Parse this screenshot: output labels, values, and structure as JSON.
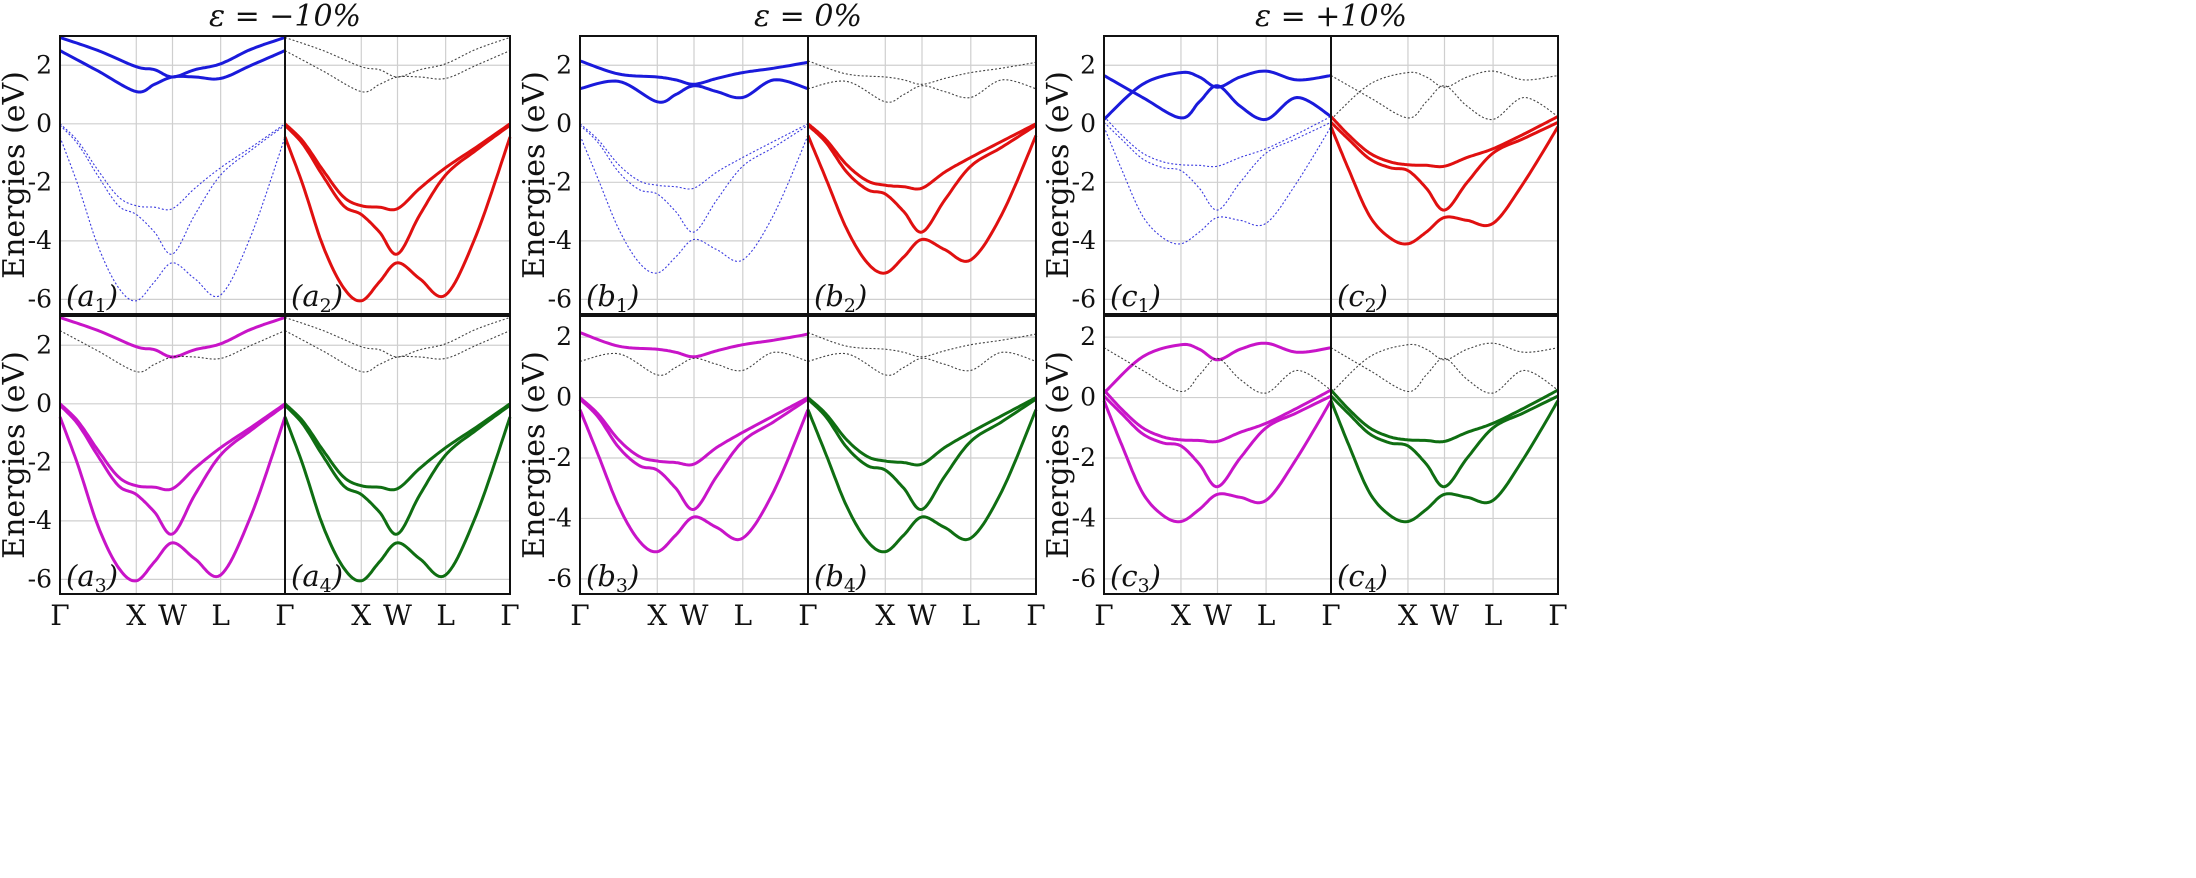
{
  "figure": {
    "ylabel": "Energies (eV)",
    "y_ticks": [
      "2",
      "0",
      "-2",
      "-4",
      "-6"
    ],
    "x_ticks": [
      "Γ",
      "X",
      "W",
      "L",
      "Γ"
    ],
    "colors": {
      "a": "#1a1adb",
      "b": "#e01010",
      "c": "#c814c8",
      "d": "#0f6e12",
      "ghost": "#222222"
    }
  },
  "chart_data": [
    {
      "type": "line",
      "title": "ε = −10%",
      "strain_percent": -10,
      "ylabel": "Energies (eV)",
      "ylim_top_row": [
        -6.5,
        3.0
      ],
      "ylim_bottom_row": [
        -6.5,
        3.0
      ],
      "x_ticks": [
        "Γ",
        "X",
        "W",
        "L",
        "Γ"
      ],
      "k_path_positions": [
        0,
        0.339,
        0.5,
        0.714,
        1
      ],
      "panels": [
        "(a1)",
        "(a2)",
        "(a3)",
        "(a4)"
      ],
      "series": [
        {
          "name": "conduction band 1",
          "x": [
            0,
            0.17,
            0.339,
            0.42,
            0.5,
            0.6,
            0.714,
            0.85,
            1
          ],
          "values": [
            2.95,
            2.5,
            1.95,
            1.85,
            1.6,
            1.85,
            2.05,
            2.55,
            2.95
          ]
        },
        {
          "name": "conduction band 2",
          "x": [
            0,
            0.17,
            0.339,
            0.42,
            0.5,
            0.6,
            0.714,
            0.85,
            1
          ],
          "values": [
            2.5,
            1.8,
            1.1,
            1.35,
            1.6,
            1.6,
            1.55,
            2.0,
            2.5
          ]
        },
        {
          "name": "valence band 1",
          "x": [
            0,
            0.08,
            0.17,
            0.26,
            0.339,
            0.42,
            0.5,
            0.6,
            0.714,
            0.85,
            1
          ],
          "values": [
            0,
            -0.6,
            -1.6,
            -2.5,
            -2.8,
            -2.85,
            -2.9,
            -2.2,
            -1.5,
            -0.8,
            0
          ]
        },
        {
          "name": "valence band 2",
          "x": [
            0,
            0.08,
            0.17,
            0.26,
            0.339,
            0.42,
            0.5,
            0.6,
            0.714,
            0.85,
            1
          ],
          "values": [
            -0.05,
            -0.7,
            -1.8,
            -2.8,
            -3.1,
            -3.7,
            -4.45,
            -3.1,
            -1.75,
            -0.9,
            -0.05
          ]
        },
        {
          "name": "valence band 3",
          "x": [
            0,
            0.08,
            0.17,
            0.26,
            0.339,
            0.42,
            0.5,
            0.6,
            0.714,
            0.85,
            1
          ],
          "values": [
            -0.45,
            -2.1,
            -4.2,
            -5.6,
            -6.05,
            -5.4,
            -4.75,
            -5.3,
            -5.85,
            -3.8,
            -0.45
          ]
        }
      ]
    },
    {
      "type": "line",
      "title": "ε = 0%",
      "strain_percent": 0,
      "ylabel": "Energies (eV)",
      "ylim_top_row": [
        -6.5,
        3.0
      ],
      "ylim_bottom_row": [
        -6.5,
        2.7
      ],
      "x_ticks": [
        "Γ",
        "X",
        "W",
        "L",
        "Γ"
      ],
      "k_path_positions": [
        0,
        0.339,
        0.5,
        0.714,
        1
      ],
      "panels": [
        "(b1)",
        "(b2)",
        "(b3)",
        "(b4)"
      ],
      "series": [
        {
          "name": "conduction band 1",
          "x": [
            0,
            0.17,
            0.339,
            0.42,
            0.5,
            0.6,
            0.714,
            0.85,
            1
          ],
          "values": [
            2.15,
            1.7,
            1.6,
            1.5,
            1.35,
            1.55,
            1.75,
            1.9,
            2.1
          ]
        },
        {
          "name": "conduction band 2",
          "x": [
            0,
            0.17,
            0.339,
            0.42,
            0.5,
            0.6,
            0.714,
            0.85,
            1
          ],
          "values": [
            1.2,
            1.45,
            0.75,
            1.0,
            1.3,
            1.1,
            0.9,
            1.5,
            1.2
          ]
        },
        {
          "name": "valence band 1",
          "x": [
            0,
            0.08,
            0.17,
            0.26,
            0.339,
            0.42,
            0.5,
            0.6,
            0.714,
            0.85,
            1
          ],
          "values": [
            0,
            -0.55,
            -1.4,
            -1.95,
            -2.1,
            -2.15,
            -2.2,
            -1.65,
            -1.15,
            -0.6,
            0
          ]
        },
        {
          "name": "valence band 2",
          "x": [
            0,
            0.08,
            0.17,
            0.26,
            0.339,
            0.42,
            0.5,
            0.6,
            0.714,
            0.85,
            1
          ],
          "values": [
            -0.05,
            -0.65,
            -1.65,
            -2.25,
            -2.4,
            -3.0,
            -3.7,
            -2.6,
            -1.45,
            -0.8,
            -0.05
          ]
        },
        {
          "name": "valence band 3",
          "x": [
            0,
            0.08,
            0.17,
            0.26,
            0.339,
            0.42,
            0.5,
            0.6,
            0.714,
            0.85,
            1
          ],
          "values": [
            -0.4,
            -1.9,
            -3.6,
            -4.75,
            -5.1,
            -4.55,
            -3.95,
            -4.3,
            -4.65,
            -3.1,
            -0.4
          ]
        }
      ]
    },
    {
      "type": "line",
      "title": "ε = +10%",
      "strain_percent": 10,
      "ylabel": "Energies (eV)",
      "ylim_top_row": [
        -6.5,
        3.0
      ],
      "ylim_bottom_row": [
        -6.5,
        2.7
      ],
      "x_ticks": [
        "Γ",
        "X",
        "W",
        "L",
        "Γ"
      ],
      "k_path_positions": [
        0,
        0.339,
        0.5,
        0.714,
        1
      ],
      "panels": [
        "(c1)",
        "(c2)",
        "(c3)",
        "(c4)"
      ],
      "series": [
        {
          "name": "conduction band 1",
          "x": [
            0,
            0.17,
            0.339,
            0.42,
            0.5,
            0.6,
            0.714,
            0.85,
            1
          ],
          "values": [
            0.15,
            1.35,
            1.75,
            1.6,
            1.25,
            1.6,
            1.8,
            1.5,
            1.65
          ]
        },
        {
          "name": "conduction band 2",
          "x": [
            0,
            0.17,
            0.339,
            0.42,
            0.5,
            0.6,
            0.714,
            0.85,
            1
          ],
          "values": [
            1.65,
            0.9,
            0.2,
            0.75,
            1.3,
            0.6,
            0.15,
            0.9,
            0.25
          ]
        },
        {
          "name": "valence band 1",
          "x": [
            0,
            0.08,
            0.17,
            0.26,
            0.339,
            0.42,
            0.5,
            0.6,
            0.714,
            0.85,
            1
          ],
          "values": [
            0.25,
            -0.4,
            -1.0,
            -1.3,
            -1.4,
            -1.42,
            -1.45,
            -1.15,
            -0.85,
            -0.35,
            0.25
          ]
        },
        {
          "name": "valence band 2",
          "x": [
            0,
            0.08,
            0.17,
            0.26,
            0.339,
            0.42,
            0.5,
            0.6,
            0.714,
            0.85,
            1
          ],
          "values": [
            0.05,
            -0.55,
            -1.2,
            -1.5,
            -1.6,
            -2.2,
            -2.95,
            -2.0,
            -1.0,
            -0.5,
            0.05
          ]
        },
        {
          "name": "valence band 3",
          "x": [
            0,
            0.08,
            0.17,
            0.26,
            0.339,
            0.42,
            0.5,
            0.6,
            0.714,
            0.85,
            1
          ],
          "values": [
            -0.1,
            -1.6,
            -3.15,
            -3.9,
            -4.1,
            -3.7,
            -3.2,
            -3.3,
            -3.4,
            -2.0,
            -0.1
          ]
        }
      ]
    }
  ]
}
